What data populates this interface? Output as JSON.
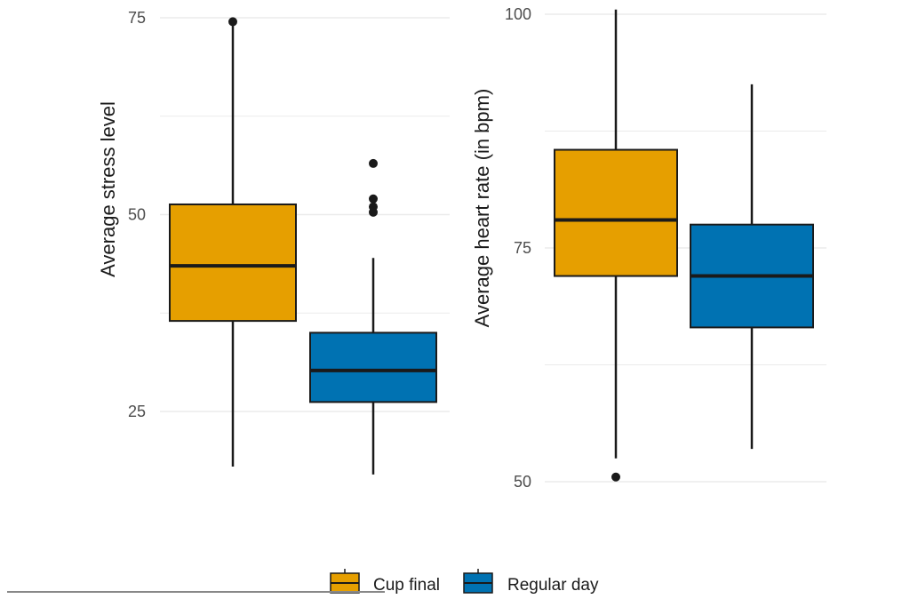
{
  "colors": {
    "cup_final": "#E69F00",
    "regular_day": "#0072B2",
    "line": "#1a1a1a",
    "grid": "#ebebeb"
  },
  "legend": {
    "items": [
      {
        "label": "Cup final",
        "color": "#E69F00"
      },
      {
        "label": "Regular day",
        "color": "#0072B2"
      }
    ]
  },
  "chart_data": [
    {
      "type": "box",
      "ylabel": "Average stress level",
      "ylim": [
        14.5,
        77
      ],
      "yticks": [
        25,
        50,
        75
      ],
      "grid_minor": [
        37.5,
        62.5
      ],
      "groups": [
        {
          "name": "Cup final",
          "whisker_low": 18,
          "q1": 36.5,
          "median": 43.5,
          "q3": 51.3,
          "whisker_high": 74.5,
          "outliers": [
            74.5
          ]
        },
        {
          "name": "Regular day",
          "whisker_low": 17,
          "q1": 26.2,
          "median": 30.2,
          "q3": 35.0,
          "whisker_high": 44.5,
          "outliers": [
            50.3,
            51.0,
            52.0,
            56.5
          ]
        }
      ]
    },
    {
      "type": "box",
      "ylabel": "Average heart rate (in bpm)",
      "ylim": [
        46,
        101
      ],
      "yticks": [
        50,
        75,
        100
      ],
      "grid_minor": [
        62.5,
        87.5
      ],
      "groups": [
        {
          "name": "Cup final",
          "whisker_low": 52.5,
          "q1": 72.0,
          "median": 78.0,
          "q3": 85.5,
          "whisker_high": 100.5,
          "outliers": [
            50.5
          ]
        },
        {
          "name": "Regular day",
          "whisker_low": 53.5,
          "q1": 66.5,
          "median": 72.0,
          "q3": 77.5,
          "whisker_high": 92.5,
          "outliers": []
        }
      ]
    }
  ]
}
